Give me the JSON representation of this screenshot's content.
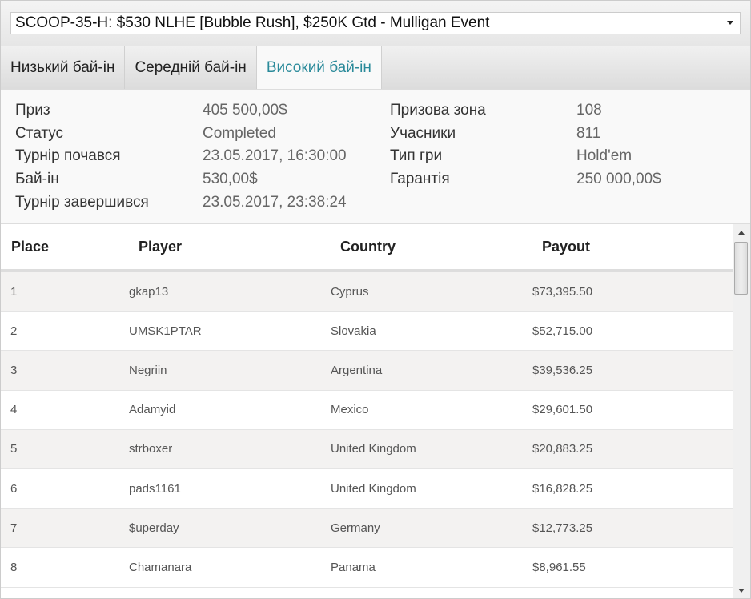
{
  "tournament_select": {
    "value": "SCOOP-35-H: $530 NLHE [Bubble Rush], $250K Gtd - Mulligan Event"
  },
  "tabs": [
    {
      "label": "Низький бай-ін"
    },
    {
      "label": "Середній бай-ін"
    },
    {
      "label": "Високий бай-ін",
      "active": true
    }
  ],
  "info_left": [
    {
      "label": "Приз",
      "value": "405 500,00$"
    },
    {
      "label": "Статус",
      "value": "Completed"
    },
    {
      "label": "Турнір почався",
      "value": "23.05.2017, 16:30:00"
    },
    {
      "label": "Бай-ін",
      "value": "530,00$"
    },
    {
      "label": "Турнір завершився",
      "value": "23.05.2017, 23:38:24"
    }
  ],
  "info_right": [
    {
      "label": "Призова зона",
      "value": "108"
    },
    {
      "label": "Учасники",
      "value": "811"
    },
    {
      "label": "Тип гри",
      "value": "Hold'em"
    },
    {
      "label": "Гарантія",
      "value": "250 000,00$"
    }
  ],
  "table": {
    "headers": [
      "Place",
      "Player",
      "Country",
      "Payout"
    ],
    "rows": [
      [
        "1",
        "gkap13",
        "Cyprus",
        "$73,395.50"
      ],
      [
        "2",
        "UMSK1PTAR",
        "Slovakia",
        "$52,715.00"
      ],
      [
        "3",
        "Negriin",
        "Argentina",
        "$39,536.25"
      ],
      [
        "4",
        "Adamyid",
        "Mexico",
        "$29,601.50"
      ],
      [
        "5",
        "strboxer",
        "United Kingdom",
        "$20,883.25"
      ],
      [
        "6",
        "pads1161",
        "United Kingdom",
        "$16,828.25"
      ],
      [
        "7",
        "$uperday",
        "Germany",
        "$12,773.25"
      ],
      [
        "8",
        "Chamanara",
        "Panama",
        "$8,961.55"
      ]
    ]
  },
  "colors": {
    "active_tab": "#2a8a9a"
  }
}
